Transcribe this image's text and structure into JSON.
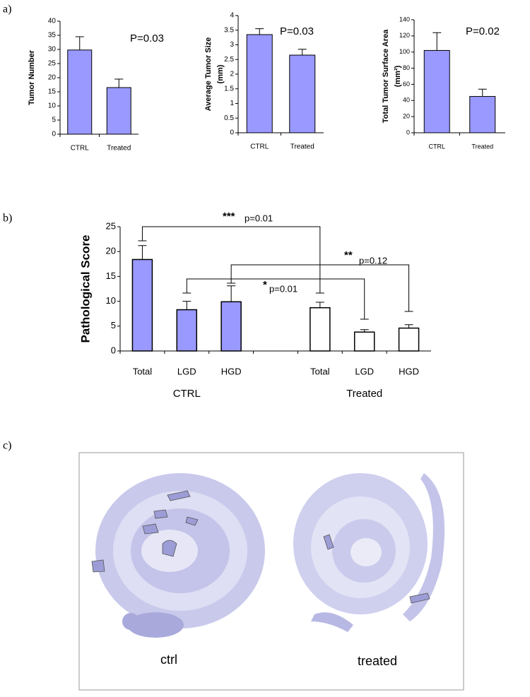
{
  "chart_data": [
    {
      "type": "bar",
      "panel": "a)",
      "ylabel": "Tumor Number",
      "annotation": "P=0.03",
      "categories": [
        "CTRL",
        "Treated"
      ],
      "series": [
        {
          "color": "#9999ff",
          "values": [
            29.8,
            16.5
          ],
          "errors": [
            4.7,
            3.0
          ]
        }
      ],
      "ylim": [
        0,
        40
      ],
      "yticks": [
        0,
        5,
        10,
        15,
        20,
        25,
        30,
        35,
        40
      ]
    },
    {
      "type": "bar",
      "ylabel": [
        "Average Tumor Size",
        "(mm)"
      ],
      "annotation": "P=0.03",
      "categories": [
        "CTRL",
        "Treated"
      ],
      "series": [
        {
          "color": "#9999ff",
          "values": [
            3.35,
            2.65
          ],
          "errors": [
            0.2,
            0.2
          ]
        }
      ],
      "ylim": [
        0,
        4
      ],
      "yticks": [
        0,
        0.5,
        1,
        1.5,
        2,
        2.5,
        3,
        3.5,
        4
      ]
    },
    {
      "type": "bar",
      "ylabel": [
        "Total Tumor Surface Area",
        "(mm²)"
      ],
      "annotation": "P=0.02",
      "categories": [
        "CTRL",
        "Treated"
      ],
      "series": [
        {
          "color": "#9999ff",
          "values": [
            102,
            45
          ],
          "errors": [
            22,
            9
          ]
        }
      ],
      "ylim": [
        0,
        140
      ],
      "yticks": [
        0,
        20,
        40,
        60,
        80,
        100,
        120,
        140
      ]
    },
    {
      "type": "bar",
      "panel": "b)",
      "ylabel": "Pathological Score",
      "categories": [
        "Total",
        "LGD",
        "HGD",
        null,
        "Total",
        "LGD",
        "HGD"
      ],
      "series": [
        {
          "name": "CTRL",
          "color": "#9999ff",
          "values": [
            18.4,
            8.3,
            9.9,
            null,
            null,
            null,
            null
          ],
          "errors": [
            2.8,
            1.7,
            3.2,
            null,
            null,
            null,
            null
          ]
        },
        {
          "name": "Treated",
          "color": "#ffffff",
          "values": [
            null,
            null,
            null,
            null,
            8.7,
            3.8,
            4.6
          ],
          "errors": [
            null,
            null,
            null,
            null,
            1.1,
            0.5,
            0.7
          ]
        }
      ],
      "comparisons": [
        {
          "stars": "***",
          "label": "p=0.01"
        },
        {
          "stars": "**",
          "label": "p=0.12"
        },
        {
          "stars": "*",
          "label": "p=0.01"
        }
      ],
      "ylim": [
        0,
        25
      ],
      "yticks": [
        0,
        5,
        10,
        15,
        20,
        25
      ]
    }
  ],
  "image": {
    "panel": "c)",
    "labels": [
      "ctrl",
      "treated"
    ]
  }
}
